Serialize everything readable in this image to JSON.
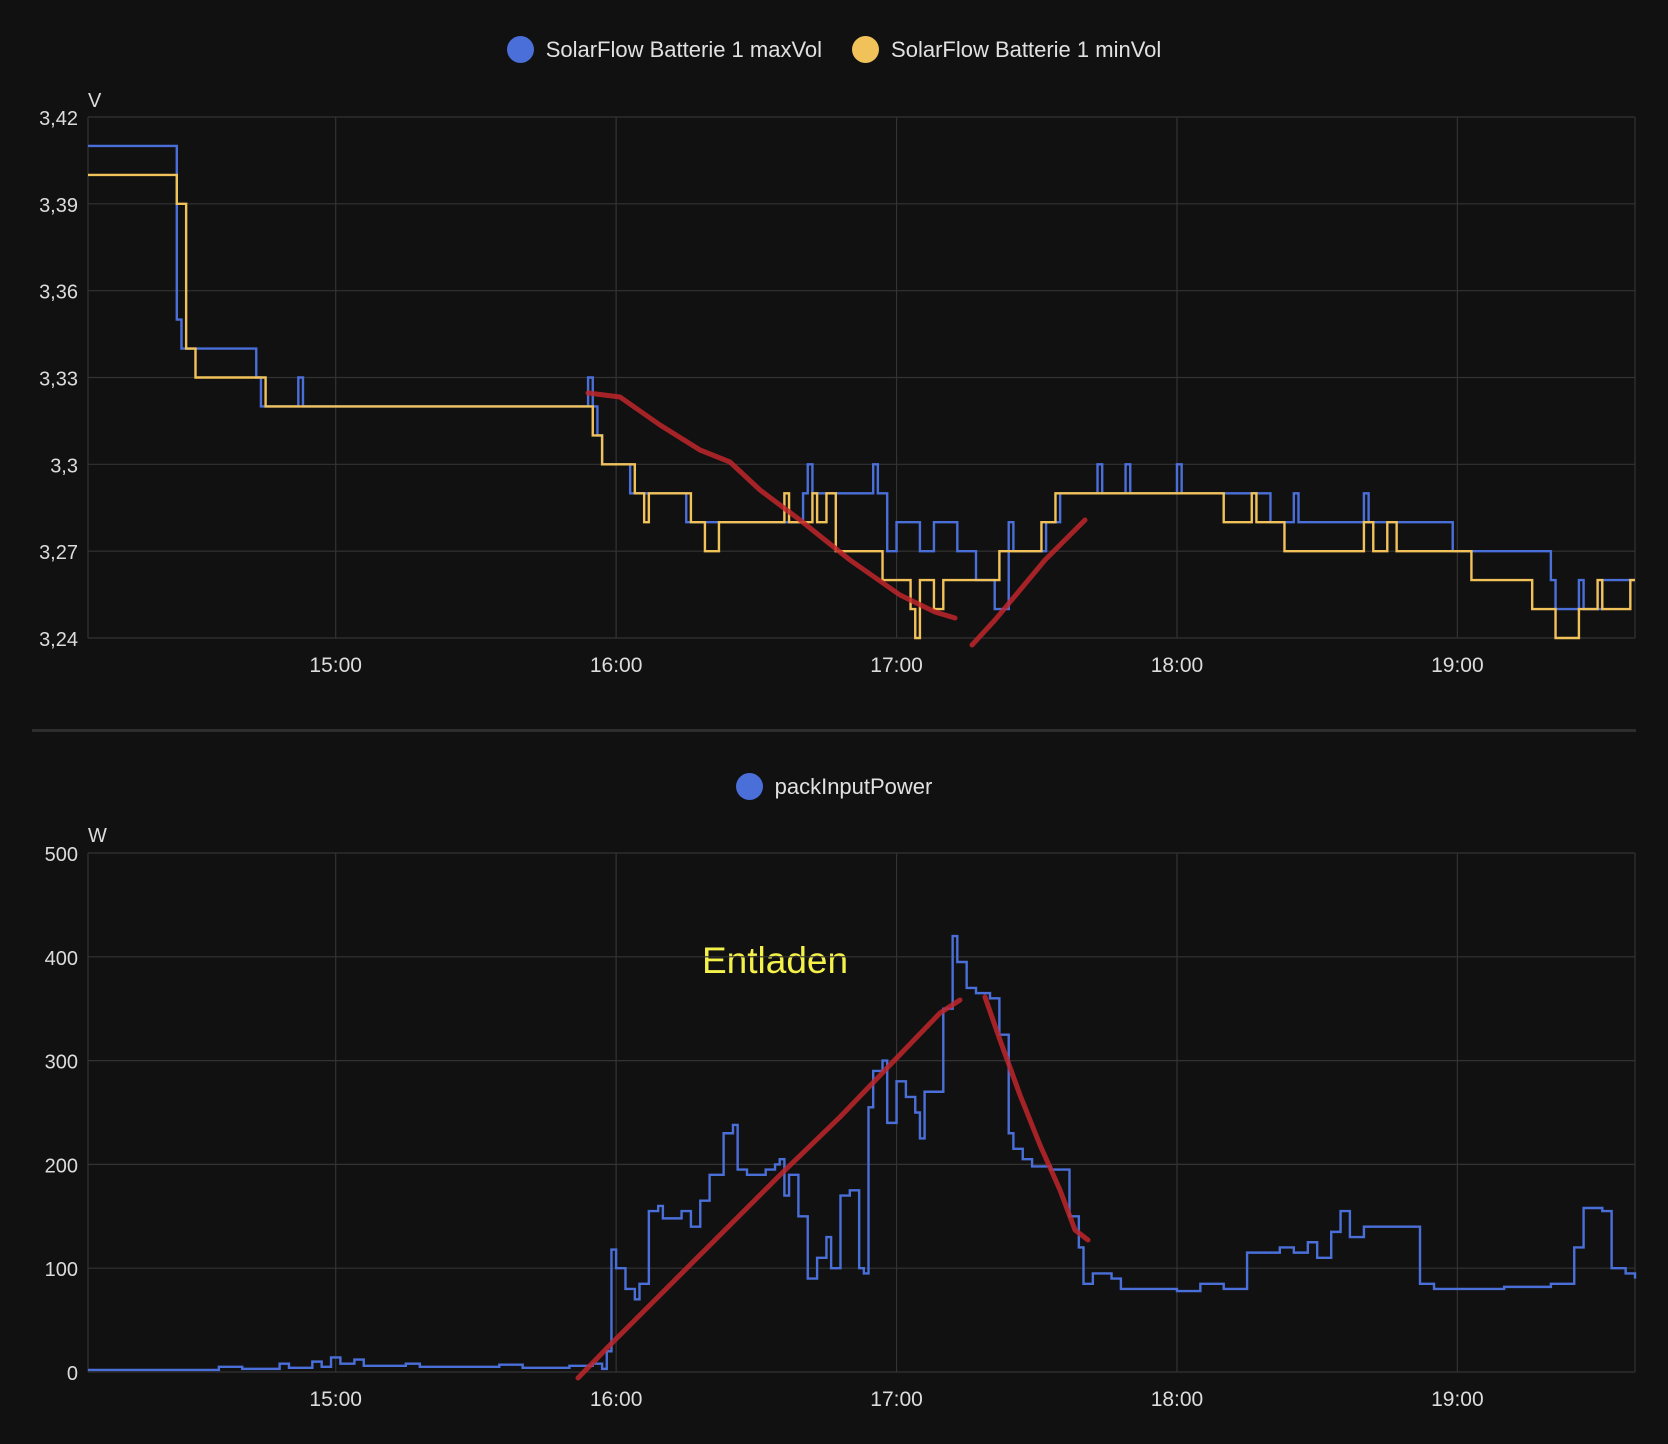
{
  "colors": {
    "background": "#111111",
    "grid": "#333333",
    "series_blue": "#4a6fd8",
    "series_yellow": "#f2c25a",
    "red_marker": "#c0262b",
    "annotation": "#f4f24a"
  },
  "chart_data": [
    {
      "type": "line",
      "step": true,
      "title": "",
      "xlabel": "",
      "ylabel": "V",
      "ylim": [
        3.24,
        3.42
      ],
      "xlim": [
        "14:07",
        "19:38"
      ],
      "yticks": [
        "3,24",
        "3,27",
        "3,3",
        "3,33",
        "3,36",
        "3,39",
        "3,42"
      ],
      "yticks_values": [
        3.24,
        3.27,
        3.3,
        3.33,
        3.36,
        3.39,
        3.42
      ],
      "xticks": [
        "15:00",
        "16:00",
        "17:00",
        "18:00",
        "19:00"
      ],
      "grid": true,
      "legend_placement": "top-center",
      "series": [
        {
          "name": "SolarFlow Batterie 1 maxVol",
          "color": "#4a6fd8",
          "points": [
            [
              "14:07",
              3.41
            ],
            [
              "14:26",
              3.35
            ],
            [
              "14:27",
              3.34
            ],
            [
              "14:43",
              3.33
            ],
            [
              "14:44",
              3.32
            ],
            [
              "14:52",
              3.33
            ],
            [
              "14:53",
              3.32
            ],
            [
              "15:54",
              3.33
            ],
            [
              "15:55",
              3.32
            ],
            [
              "15:56",
              3.31
            ],
            [
              "15:57",
              3.3
            ],
            [
              "16:03",
              3.29
            ],
            [
              "16:15",
              3.28
            ],
            [
              "16:26",
              3.28
            ],
            [
              "16:33",
              3.28
            ],
            [
              "16:40",
              3.29
            ],
            [
              "16:41",
              3.3
            ],
            [
              "16:42",
              3.29
            ],
            [
              "16:55",
              3.3
            ],
            [
              "16:56",
              3.29
            ],
            [
              "16:57",
              3.29
            ],
            [
              "16:58",
              3.27
            ],
            [
              "17:00",
              3.28
            ],
            [
              "17:05",
              3.27
            ],
            [
              "17:08",
              3.28
            ],
            [
              "17:13",
              3.27
            ],
            [
              "17:17",
              3.26
            ],
            [
              "17:20",
              3.26
            ],
            [
              "17:21",
              3.25
            ],
            [
              "17:24",
              3.28
            ],
            [
              "17:25",
              3.27
            ],
            [
              "17:32",
              3.28
            ],
            [
              "17:35",
              3.29
            ],
            [
              "17:43",
              3.3
            ],
            [
              "17:44",
              3.29
            ],
            [
              "17:49",
              3.3
            ],
            [
              "17:50",
              3.29
            ],
            [
              "18:00",
              3.3
            ],
            [
              "18:01",
              3.29
            ],
            [
              "18:15",
              3.29
            ],
            [
              "18:20",
              3.28
            ],
            [
              "18:25",
              3.29
            ],
            [
              "18:26",
              3.28
            ],
            [
              "18:34",
              3.28
            ],
            [
              "18:40",
              3.29
            ],
            [
              "18:41",
              3.28
            ],
            [
              "18:59",
              3.27
            ],
            [
              "19:04",
              3.27
            ],
            [
              "19:20",
              3.26
            ],
            [
              "19:21",
              3.25
            ],
            [
              "19:26",
              3.26
            ],
            [
              "19:27",
              3.25
            ],
            [
              "19:31",
              3.26
            ],
            [
              "19:38",
              3.26
            ]
          ]
        },
        {
          "name": "SolarFlow Batterie 1 minVol",
          "color": "#f2c25a",
          "points": [
            [
              "14:07",
              3.4
            ],
            [
              "14:26",
              3.39
            ],
            [
              "14:28",
              3.34
            ],
            [
              "14:30",
              3.33
            ],
            [
              "14:45",
              3.32
            ],
            [
              "15:55",
              3.31
            ],
            [
              "15:57",
              3.3
            ],
            [
              "16:04",
              3.29
            ],
            [
              "16:06",
              3.28
            ],
            [
              "16:07",
              3.29
            ],
            [
              "16:16",
              3.28
            ],
            [
              "16:19",
              3.27
            ],
            [
              "16:22",
              3.28
            ],
            [
              "16:36",
              3.29
            ],
            [
              "16:37",
              3.28
            ],
            [
              "16:42",
              3.29
            ],
            [
              "16:43",
              3.28
            ],
            [
              "16:45",
              3.29
            ],
            [
              "16:47",
              3.27
            ],
            [
              "16:57",
              3.26
            ],
            [
              "17:03",
              3.25
            ],
            [
              "17:04",
              3.24
            ],
            [
              "17:05",
              3.26
            ],
            [
              "17:08",
              3.25
            ],
            [
              "17:10",
              3.26
            ],
            [
              "17:14",
              3.26
            ],
            [
              "17:22",
              3.27
            ],
            [
              "17:24",
              3.27
            ],
            [
              "17:31",
              3.28
            ],
            [
              "17:34",
              3.29
            ],
            [
              "18:10",
              3.28
            ],
            [
              "18:16",
              3.29
            ],
            [
              "18:17",
              3.28
            ],
            [
              "18:23",
              3.27
            ],
            [
              "18:27",
              3.27
            ],
            [
              "18:40",
              3.28
            ],
            [
              "18:42",
              3.27
            ],
            [
              "18:45",
              3.28
            ],
            [
              "18:47",
              3.27
            ],
            [
              "19:03",
              3.26
            ],
            [
              "19:16",
              3.25
            ],
            [
              "19:21",
              3.24
            ],
            [
              "19:26",
              3.25
            ],
            [
              "19:30",
              3.26
            ],
            [
              "19:31",
              3.25
            ],
            [
              "19:37",
              3.26
            ],
            [
              "19:38",
              3.26
            ]
          ]
        }
      ]
    },
    {
      "type": "line",
      "step": true,
      "title": "",
      "xlabel": "",
      "ylabel": "W",
      "ylim": [
        0,
        500
      ],
      "xlim": [
        "14:07",
        "19:38"
      ],
      "yticks": [
        "0",
        "100",
        "200",
        "300",
        "400",
        "500"
      ],
      "yticks_values": [
        0,
        100,
        200,
        300,
        400,
        500
      ],
      "xticks": [
        "15:00",
        "16:00",
        "17:00",
        "18:00",
        "19:00"
      ],
      "grid": true,
      "legend_placement": "top-center",
      "annotation": "Entladen",
      "series": [
        {
          "name": "packInputPower",
          "color": "#4a6fd8",
          "points": [
            [
              "14:07",
              2
            ],
            [
              "14:30",
              2
            ],
            [
              "14:35",
              5
            ],
            [
              "14:40",
              3
            ],
            [
              "14:48",
              8
            ],
            [
              "14:50",
              4
            ],
            [
              "14:55",
              10
            ],
            [
              "14:57",
              5
            ],
            [
              "14:59",
              14
            ],
            [
              "15:01",
              8
            ],
            [
              "15:04",
              12
            ],
            [
              "15:06",
              6
            ],
            [
              "15:15",
              8
            ],
            [
              "15:18",
              5
            ],
            [
              "15:35",
              7
            ],
            [
              "15:40",
              4
            ],
            [
              "15:50",
              6
            ],
            [
              "15:55",
              8
            ],
            [
              "15:57",
              3
            ],
            [
              "15:58",
              20
            ],
            [
              "15:59",
              118
            ],
            [
              "16:00",
              100
            ],
            [
              "16:02",
              80
            ],
            [
              "16:04",
              70
            ],
            [
              "16:05",
              85
            ],
            [
              "16:07",
              155
            ],
            [
              "16:09",
              160
            ],
            [
              "16:10",
              148
            ],
            [
              "16:14",
              155
            ],
            [
              "16:16",
              140
            ],
            [
              "16:18",
              165
            ],
            [
              "16:20",
              190
            ],
            [
              "16:23",
              230
            ],
            [
              "16:25",
              238
            ],
            [
              "16:26",
              195
            ],
            [
              "16:28",
              190
            ],
            [
              "16:32",
              195
            ],
            [
              "16:34",
              200
            ],
            [
              "16:35",
              205
            ],
            [
              "16:36",
              170
            ],
            [
              "16:37",
              190
            ],
            [
              "16:39",
              150
            ],
            [
              "16:41",
              90
            ],
            [
              "16:43",
              110
            ],
            [
              "16:45",
              130
            ],
            [
              "16:46",
              100
            ],
            [
              "16:48",
              170
            ],
            [
              "16:50",
              175
            ],
            [
              "16:52",
              100
            ],
            [
              "16:53",
              95
            ],
            [
              "16:54",
              255
            ],
            [
              "16:55",
              290
            ],
            [
              "16:57",
              300
            ],
            [
              "16:58",
              240
            ],
            [
              "17:00",
              280
            ],
            [
              "17:02",
              265
            ],
            [
              "17:04",
              250
            ],
            [
              "17:05",
              225
            ],
            [
              "17:06",
              270
            ],
            [
              "17:07",
              270
            ],
            [
              "17:10",
              350
            ],
            [
              "17:12",
              420
            ],
            [
              "17:13",
              395
            ],
            [
              "17:15",
              370
            ],
            [
              "17:17",
              365
            ],
            [
              "17:20",
              360
            ],
            [
              "17:22",
              325
            ],
            [
              "17:24",
              230
            ],
            [
              "17:25",
              215
            ],
            [
              "17:27",
              205
            ],
            [
              "17:29",
              198
            ],
            [
              "17:33",
              195
            ],
            [
              "17:37",
              150
            ],
            [
              "17:39",
              120
            ],
            [
              "17:40",
              85
            ],
            [
              "17:42",
              95
            ],
            [
              "17:46",
              90
            ],
            [
              "17:48",
              80
            ],
            [
              "18:00",
              78
            ],
            [
              "18:05",
              85
            ],
            [
              "18:10",
              80
            ],
            [
              "18:15",
              115
            ],
            [
              "18:22",
              120
            ],
            [
              "18:25",
              115
            ],
            [
              "18:28",
              125
            ],
            [
              "18:30",
              110
            ],
            [
              "18:33",
              135
            ],
            [
              "18:35",
              155
            ],
            [
              "18:37",
              130
            ],
            [
              "18:40",
              140
            ],
            [
              "18:48",
              140
            ],
            [
              "18:52",
              85
            ],
            [
              "18:55",
              80
            ],
            [
              "19:10",
              82
            ],
            [
              "19:20",
              85
            ],
            [
              "19:25",
              120
            ],
            [
              "19:27",
              158
            ],
            [
              "19:31",
              155
            ],
            [
              "19:33",
              100
            ],
            [
              "19:36",
              95
            ],
            [
              "19:38",
              90
            ]
          ]
        }
      ]
    }
  ],
  "legend1": {
    "item1": "SolarFlow Batterie 1 maxVol",
    "item2": "SolarFlow Batterie 1 minVol"
  },
  "legend2": {
    "item1": "packInputPower"
  },
  "annotation": "Entladen"
}
